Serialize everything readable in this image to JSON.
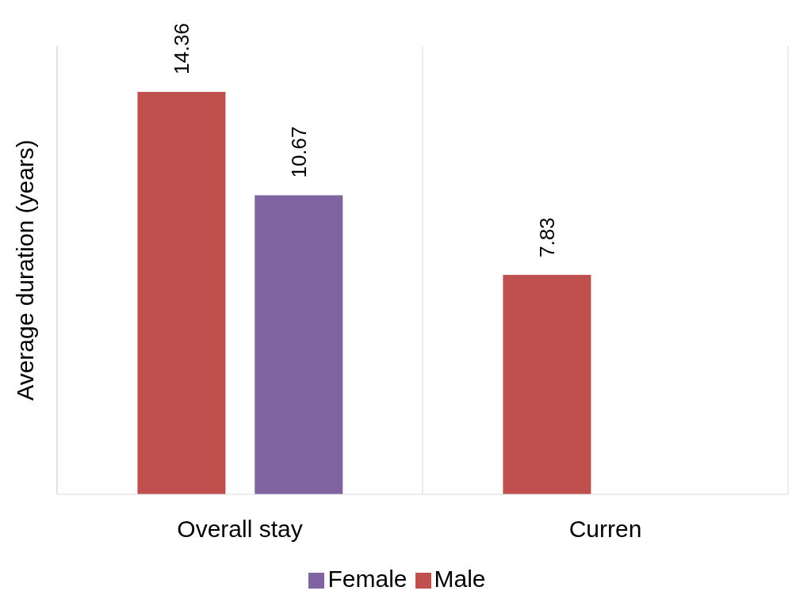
{
  "chart_data": {
    "type": "bar",
    "ylabel": "Average duration (years)",
    "categories": [
      "Overall stay",
      "Curren"
    ],
    "series": [
      {
        "name": "Male",
        "color": "#c0504d",
        "values": [
          14.36,
          7.83
        ]
      },
      {
        "name": "Female",
        "color": "#8064a2",
        "values": [
          10.67,
          null
        ]
      }
    ],
    "ylim": [
      0,
      16
    ],
    "data_labels": true,
    "grid": "x",
    "legend": "bottom"
  }
}
